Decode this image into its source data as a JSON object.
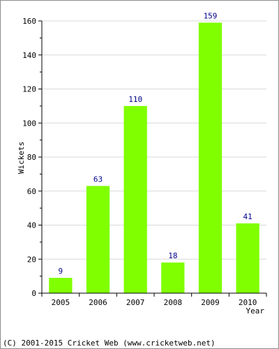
{
  "chart_data": {
    "type": "bar",
    "categories": [
      "2005",
      "2006",
      "2007",
      "2008",
      "2009",
      "2010"
    ],
    "values": [
      9,
      63,
      110,
      18,
      159,
      41
    ],
    "xlabel": "Year",
    "ylabel": "Wickets",
    "ylim": [
      0,
      160
    ],
    "yticks": [
      0,
      20,
      40,
      60,
      80,
      100,
      120,
      140,
      160
    ],
    "grid": true,
    "legend": "none"
  },
  "colors": {
    "bar": "#80ff00",
    "data_label": "#00008b",
    "grid": "#d9d9d9",
    "axis": "#000000"
  },
  "footer": "(C) 2001-2015 Cricket Web (www.cricketweb.net)"
}
